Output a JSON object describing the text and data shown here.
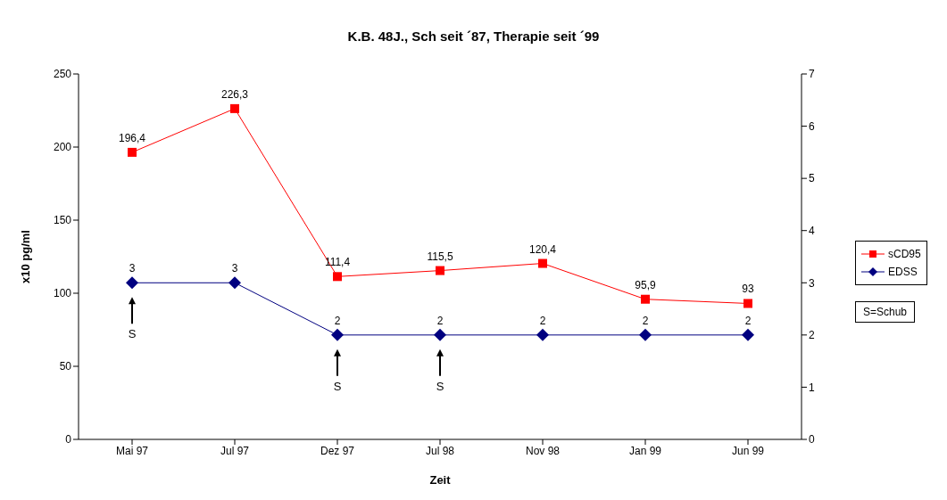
{
  "chart_data": {
    "type": "line",
    "title": "K.B. 48J., Sch seit ´87, Therapie seit ´99",
    "xlabel": "Zeit",
    "ylabel": "x10 pg/ml",
    "categories": [
      "Mai 97",
      "Jul 97",
      "Dez 97",
      "Jul 98",
      "Nov 98",
      "Jan 99",
      "Jun 99"
    ],
    "series": [
      {
        "name": "sCD95",
        "color": "#ff0000",
        "marker": "square",
        "values": [
          196.4,
          226.3,
          111.4,
          115.5,
          120.4,
          95.9,
          93
        ],
        "value_labels": [
          "196,4",
          "226,3",
          "111,4",
          "115,5",
          "120,4",
          "95,9",
          "93"
        ]
      },
      {
        "name": "EDSS",
        "color": "#000080",
        "marker": "diamond",
        "axis": "y2",
        "values": [
          3,
          3,
          2,
          2,
          2,
          2,
          2
        ]
      }
    ],
    "ylim": [
      0,
      250
    ],
    "yticks": [
      0,
      50,
      100,
      150,
      200,
      250
    ],
    "y2lim": [
      0,
      7
    ],
    "y2ticks": [
      0,
      1,
      2,
      3,
      4,
      5,
      6,
      7
    ],
    "data_labels": true,
    "legend": "right",
    "annotations": [
      "S=Schub",
      "S",
      "S",
      "S"
    ]
  }
}
